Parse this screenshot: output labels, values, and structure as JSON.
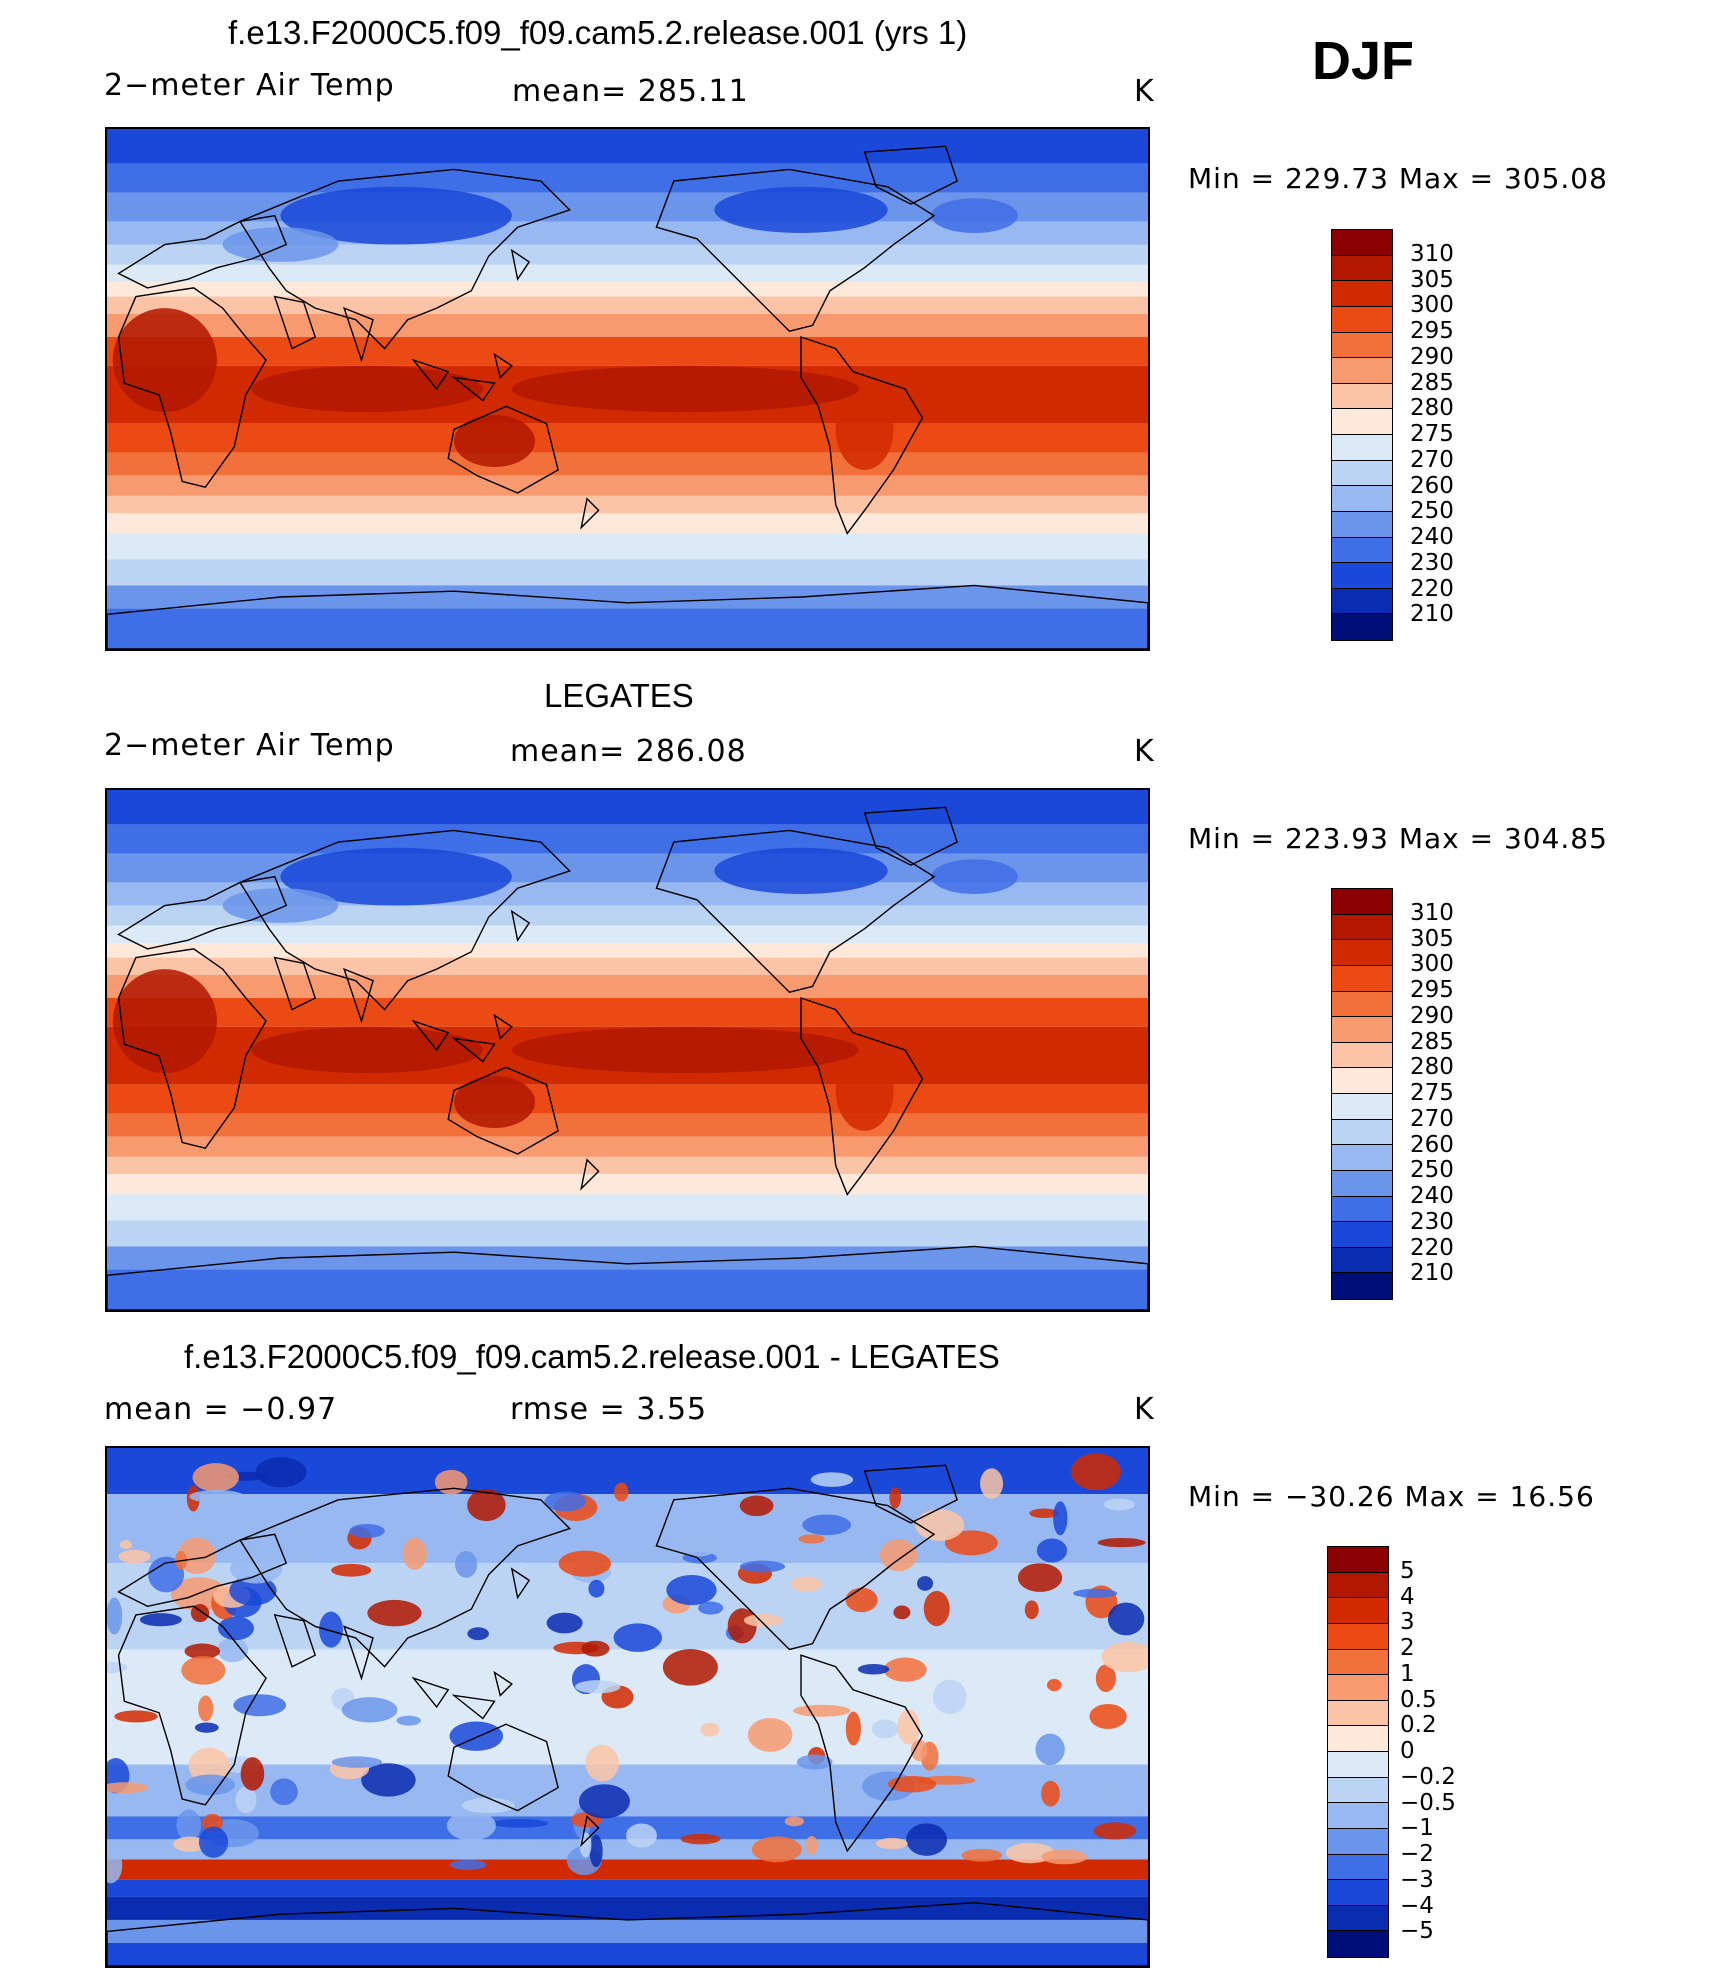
{
  "season": "DJF",
  "panels": [
    {
      "id": "model",
      "title": "f.e13.F2000C5.f09_f09.cam5.2.release.001 (yrs 1)",
      "left_label": "2−meter Air Temp",
      "center_label": "mean= 285.11",
      "units": "K",
      "minmax": "Min  =  229.73  Max  =  305.08",
      "map_style": "absolute"
    },
    {
      "id": "obs",
      "title": "LEGATES",
      "left_label": "2−meter Air Temp",
      "center_label": "mean= 286.08",
      "units": "K",
      "minmax": "Min  =  223.93  Max  =  304.85",
      "map_style": "absolute"
    },
    {
      "id": "diff",
      "title": "f.e13.F2000C5.f09_f09.cam5.2.release.001 - LEGATES",
      "left_label": "mean  =    −0.97",
      "center_label": "rmse  =     3.55",
      "units": "K",
      "minmax": "Min  =  −30.26  Max  =    16.56",
      "map_style": "difference"
    }
  ],
  "colorbar_abs": {
    "labels": [
      "310",
      "305",
      "300",
      "295",
      "290",
      "285",
      "280",
      "275",
      "270",
      "260",
      "250",
      "240",
      "230",
      "220",
      "210"
    ],
    "colors": [
      "#8b0000",
      "#b21800",
      "#d22a00",
      "#ec4a14",
      "#f2703a",
      "#f79a70",
      "#fbc4a6",
      "#fde8da",
      "#dceaf8",
      "#bcd4f4",
      "#97b8f0",
      "#6b95ea",
      "#3f6fe6",
      "#1a48d8",
      "#0a2cb0",
      "#000f78"
    ]
  },
  "colorbar_diff": {
    "labels": [
      "5",
      "4",
      "3",
      "2",
      "1",
      "0.5",
      "0.2",
      "0",
      "−0.2",
      "−0.5",
      "−1",
      "−2",
      "−3",
      "−4",
      "−5"
    ],
    "colors": [
      "#8b0000",
      "#b21800",
      "#d22a00",
      "#ec4a14",
      "#f2703a",
      "#f79a70",
      "#fbc4a6",
      "#fde8da",
      "#dceaf8",
      "#bcd4f4",
      "#97b8f0",
      "#6b95ea",
      "#3f6fe6",
      "#1a48d8",
      "#0a2cb0",
      "#000f78"
    ]
  }
}
